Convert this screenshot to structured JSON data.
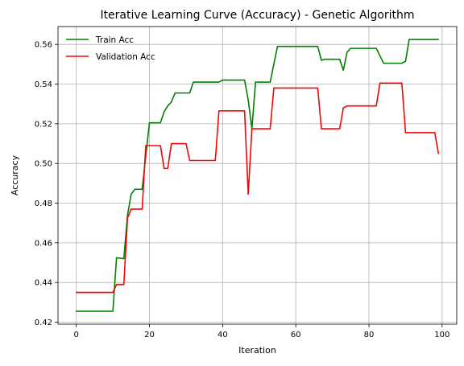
{
  "chart_data": {
    "type": "line",
    "title": "Iterative Learning Curve (Accuracy) - Genetic Algorithm",
    "xlabel": "Iteration",
    "ylabel": "Accuracy",
    "xlim": [
      -5,
      104
    ],
    "ylim": [
      0.419,
      0.569
    ],
    "xticks": [
      0,
      20,
      40,
      60,
      80,
      100
    ],
    "yticks": [
      0.42,
      0.44,
      0.46,
      0.48,
      0.5,
      0.52,
      0.54,
      0.56
    ],
    "ytick_labels": [
      "0.42",
      "0.44",
      "0.46",
      "0.48",
      "0.50",
      "0.52",
      "0.54",
      "0.56"
    ],
    "grid": true,
    "legend_position": "top-left",
    "series": [
      {
        "name": "Train Acc",
        "color": "#008000",
        "points": [
          [
            0,
            0.4255
          ],
          [
            10,
            0.4255
          ],
          [
            11,
            0.4525
          ],
          [
            13,
            0.452
          ],
          [
            14,
            0.474
          ],
          [
            15,
            0.4845
          ],
          [
            16,
            0.487
          ],
          [
            18,
            0.487
          ],
          [
            20,
            0.5205
          ],
          [
            23,
            0.5205
          ],
          [
            24,
            0.526
          ],
          [
            25,
            0.529
          ],
          [
            26,
            0.531
          ],
          [
            27,
            0.5355
          ],
          [
            31,
            0.5355
          ],
          [
            32,
            0.541
          ],
          [
            39,
            0.541
          ],
          [
            40,
            0.542
          ],
          [
            46,
            0.542
          ],
          [
            47,
            0.532
          ],
          [
            48,
            0.5175
          ],
          [
            49,
            0.541
          ],
          [
            53,
            0.541
          ],
          [
            55,
            0.559
          ],
          [
            66,
            0.559
          ],
          [
            67,
            0.552
          ],
          [
            68,
            0.5525
          ],
          [
            72,
            0.5525
          ],
          [
            73,
            0.547
          ],
          [
            74,
            0.556
          ],
          [
            75,
            0.558
          ],
          [
            82,
            0.558
          ],
          [
            84,
            0.5505
          ],
          [
            89,
            0.5505
          ],
          [
            90,
            0.5515
          ],
          [
            91,
            0.5625
          ],
          [
            99,
            0.5625
          ]
        ]
      },
      {
        "name": "Validation Acc",
        "color": "#ff0000",
        "points": [
          [
            0,
            0.435
          ],
          [
            10,
            0.435
          ],
          [
            11,
            0.439
          ],
          [
            13,
            0.439
          ],
          [
            14,
            0.4725
          ],
          [
            15,
            0.477
          ],
          [
            18,
            0.477
          ],
          [
            19,
            0.509
          ],
          [
            23,
            0.509
          ],
          [
            24,
            0.4975
          ],
          [
            25,
            0.4975
          ],
          [
            26,
            0.51
          ],
          [
            30,
            0.51
          ],
          [
            31,
            0.5015
          ],
          [
            38,
            0.5015
          ],
          [
            39,
            0.5265
          ],
          [
            46,
            0.5265
          ],
          [
            47,
            0.4845
          ],
          [
            48,
            0.5175
          ],
          [
            53,
            0.5175
          ],
          [
            54,
            0.538
          ],
          [
            66,
            0.538
          ],
          [
            67,
            0.5175
          ],
          [
            72,
            0.5175
          ],
          [
            73,
            0.528
          ],
          [
            74,
            0.529
          ],
          [
            82,
            0.529
          ],
          [
            83,
            0.5405
          ],
          [
            89,
            0.5405
          ],
          [
            90,
            0.5155
          ],
          [
            98,
            0.5155
          ],
          [
            99,
            0.505
          ]
        ]
      }
    ]
  }
}
